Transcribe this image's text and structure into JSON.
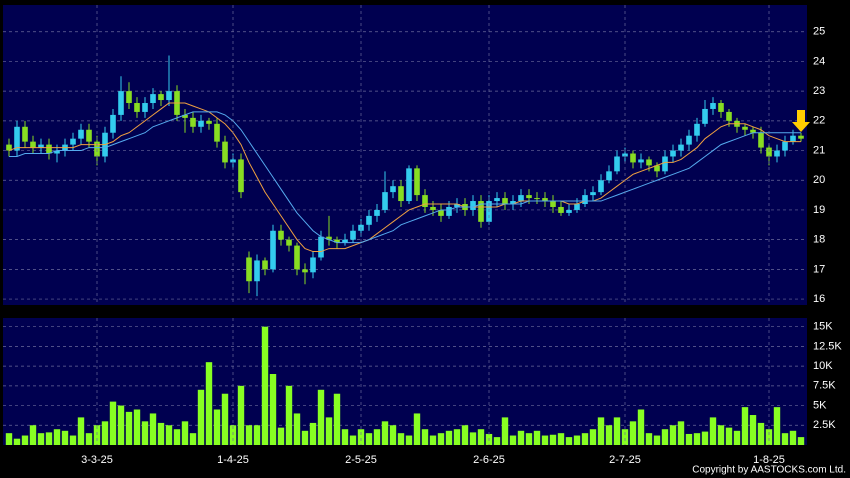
{
  "chart_data": [
    {
      "type": "candlestick",
      "up_color": "#33ccee",
      "down_color": "#88dd22",
      "ylim": [
        15.8,
        25.9
      ],
      "yticks": [
        16,
        17,
        18,
        19,
        20,
        21,
        22,
        23,
        24,
        25
      ],
      "grid": true,
      "open": [
        21.2,
        21.0,
        21.8,
        21.3,
        21.1,
        21.2,
        20.9,
        21.0,
        21.2,
        21.4,
        21.7,
        21.3,
        20.8,
        21.6,
        22.2,
        23.0,
        22.6,
        22.3,
        22.6,
        22.9,
        22.7,
        23.0,
        22.2,
        22.1,
        21.8,
        22.0,
        21.9,
        21.3,
        20.6,
        20.7,
        17.4,
        16.6,
        17.3,
        17.0,
        18.3,
        18.0,
        17.8,
        17.0,
        16.9,
        17.4,
        18.1,
        18.0,
        17.9,
        18.0,
        18.3,
        18.5,
        18.8,
        19.0,
        19.6,
        19.8,
        19.3,
        20.4,
        19.5,
        19.1,
        19.0,
        18.8,
        19.1,
        19.2,
        19.0,
        19.3,
        18.6,
        19.3,
        19.4,
        19.2,
        19.3,
        19.5,
        19.4,
        19.4,
        19.3,
        19.1,
        18.9,
        19.0,
        19.2,
        19.5,
        19.6,
        20.0,
        20.3,
        20.8,
        20.9,
        20.6,
        20.7,
        20.5,
        20.3,
        20.8,
        21.0,
        21.2,
        21.5,
        21.9,
        22.4,
        22.6,
        22.3,
        22.0,
        21.8,
        21.7,
        21.6,
        21.1,
        20.8,
        21.0,
        21.3,
        21.5
      ],
      "high": [
        21.4,
        22.0,
        22.0,
        21.5,
        21.4,
        21.4,
        21.2,
        21.4,
        21.6,
        21.9,
        21.9,
        21.5,
        21.8,
        22.4,
        23.5,
        23.3,
        22.8,
        22.8,
        23.1,
        23.0,
        24.2,
        23.2,
        22.4,
        22.3,
        22.2,
        22.1,
        22.1,
        21.5,
        20.9,
        20.9,
        17.6,
        17.5,
        17.4,
        18.5,
        18.5,
        18.1,
        17.9,
        17.2,
        17.6,
        18.3,
        18.8,
        18.1,
        18.2,
        18.5,
        18.7,
        19.0,
        19.2,
        20.3,
        20.0,
        20.0,
        20.5,
        20.5,
        19.7,
        19.3,
        19.2,
        19.3,
        19.4,
        19.4,
        19.5,
        19.5,
        19.5,
        19.6,
        19.6,
        19.5,
        19.7,
        19.7,
        19.6,
        19.6,
        19.5,
        19.3,
        19.2,
        19.4,
        19.7,
        19.8,
        20.2,
        20.5,
        21.0,
        21.1,
        21.0,
        20.9,
        20.8,
        20.6,
        21.0,
        21.2,
        21.4,
        21.7,
        22.1,
        22.7,
        22.8,
        22.7,
        22.4,
        22.1,
        21.9,
        21.8,
        21.8,
        21.2,
        21.2,
        21.5,
        21.7,
        21.6
      ],
      "low": [
        20.8,
        20.8,
        21.1,
        20.9,
        20.9,
        20.7,
        20.6,
        20.8,
        21.0,
        21.2,
        21.1,
        20.5,
        20.6,
        21.4,
        22.0,
        22.4,
        22.1,
        22.1,
        22.4,
        22.5,
        22.5,
        22.0,
        21.6,
        21.6,
        21.6,
        21.7,
        21.1,
        20.4,
        20.4,
        19.4,
        16.2,
        16.1,
        16.8,
        16.9,
        17.8,
        17.6,
        16.8,
        16.5,
        16.7,
        17.3,
        17.8,
        17.7,
        17.8,
        17.9,
        18.1,
        18.3,
        18.6,
        18.9,
        19.4,
        19.1,
        19.2,
        19.3,
        18.9,
        18.8,
        18.6,
        18.7,
        18.9,
        18.8,
        18.8,
        18.4,
        18.5,
        19.1,
        19.0,
        19.0,
        19.1,
        19.2,
        19.2,
        19.1,
        18.9,
        18.8,
        18.8,
        18.9,
        19.1,
        19.3,
        19.5,
        19.9,
        20.2,
        20.6,
        20.4,
        20.4,
        20.3,
        20.1,
        20.2,
        20.6,
        20.8,
        21.0,
        21.3,
        21.8,
        22.2,
        22.1,
        21.8,
        21.6,
        21.5,
        21.4,
        20.9,
        20.5,
        20.6,
        20.8,
        21.2,
        21.3
      ],
      "close": [
        21.0,
        21.8,
        21.3,
        21.1,
        21.2,
        20.9,
        21.0,
        21.2,
        21.4,
        21.7,
        21.3,
        20.8,
        21.6,
        22.2,
        23.0,
        22.6,
        22.3,
        22.6,
        22.9,
        22.7,
        23.0,
        22.2,
        22.1,
        21.8,
        22.0,
        21.9,
        21.3,
        20.6,
        20.7,
        19.6,
        16.6,
        17.3,
        17.0,
        18.3,
        18.0,
        17.8,
        17.0,
        16.9,
        17.4,
        18.1,
        18.0,
        17.9,
        18.0,
        18.3,
        18.5,
        18.8,
        19.0,
        19.6,
        19.8,
        19.3,
        20.4,
        19.5,
        19.1,
        19.0,
        18.8,
        19.1,
        19.2,
        19.0,
        19.3,
        18.6,
        19.3,
        19.4,
        19.2,
        19.3,
        19.5,
        19.4,
        19.4,
        19.3,
        19.1,
        18.9,
        19.0,
        19.2,
        19.5,
        19.6,
        20.0,
        20.3,
        20.8,
        20.9,
        20.6,
        20.7,
        20.5,
        20.3,
        20.8,
        21.0,
        21.2,
        21.5,
        21.9,
        22.4,
        22.6,
        22.3,
        22.0,
        21.8,
        21.7,
        21.6,
        21.1,
        20.8,
        21.0,
        21.3,
        21.5,
        21.4
      ],
      "lines": [
        {
          "color": "#f0a040",
          "values": [
            21.0,
            21.1,
            21.1,
            21.1,
            21.1,
            21.1,
            21.1,
            21.1,
            21.1,
            21.2,
            21.2,
            21.2,
            21.2,
            21.3,
            21.5,
            21.6,
            21.8,
            22.0,
            22.2,
            22.4,
            22.6,
            22.6,
            22.6,
            22.5,
            22.4,
            22.3,
            22.1,
            21.9,
            21.6,
            21.2,
            20.6,
            20.1,
            19.6,
            19.2,
            18.8,
            18.4,
            18.0,
            17.7,
            17.6,
            17.6,
            17.7,
            17.7,
            17.7,
            17.8,
            17.9,
            18.0,
            18.2,
            18.4,
            18.6,
            18.8,
            19.0,
            19.1,
            19.2,
            19.2,
            19.2,
            19.2,
            19.2,
            19.1,
            19.1,
            19.1,
            19.1,
            19.1,
            19.2,
            19.2,
            19.3,
            19.3,
            19.3,
            19.3,
            19.3,
            19.3,
            19.2,
            19.2,
            19.3,
            19.3,
            19.4,
            19.6,
            19.8,
            20.0,
            20.2,
            20.3,
            20.4,
            20.5,
            20.6,
            20.6,
            20.7,
            20.9,
            21.1,
            21.4,
            21.6,
            21.8,
            21.9,
            21.9,
            21.9,
            21.8,
            21.7,
            21.5,
            21.4,
            21.3,
            21.3,
            21.3
          ]
        },
        {
          "color": "#55aaee",
          "values": [
            20.8,
            20.8,
            20.9,
            20.9,
            20.9,
            20.9,
            21.0,
            21.0,
            21.0,
            21.0,
            21.1,
            21.1,
            21.1,
            21.2,
            21.3,
            21.4,
            21.5,
            21.6,
            21.8,
            21.9,
            22.0,
            22.1,
            22.2,
            22.3,
            22.3,
            22.3,
            22.3,
            22.2,
            22.0,
            21.7,
            21.3,
            20.9,
            20.5,
            20.1,
            19.7,
            19.3,
            18.9,
            18.6,
            18.3,
            18.1,
            18.0,
            17.9,
            17.9,
            17.9,
            17.9,
            18.0,
            18.1,
            18.2,
            18.3,
            18.5,
            18.6,
            18.7,
            18.8,
            18.9,
            19.0,
            19.0,
            19.1,
            19.1,
            19.1,
            19.2,
            19.2,
            19.2,
            19.2,
            19.2,
            19.2,
            19.3,
            19.3,
            19.3,
            19.3,
            19.3,
            19.3,
            19.3,
            19.3,
            19.3,
            19.3,
            19.4,
            19.5,
            19.6,
            19.7,
            19.8,
            19.9,
            20.0,
            20.1,
            20.2,
            20.3,
            20.4,
            20.6,
            20.8,
            21.0,
            21.2,
            21.3,
            21.4,
            21.5,
            21.6,
            21.6,
            21.6,
            21.6,
            21.6,
            21.6,
            21.6
          ]
        }
      ]
    },
    {
      "type": "bar",
      "color": "#88ff22",
      "ylim": [
        0,
        16100
      ],
      "grid": true,
      "yticks": [
        {
          "value": 2500,
          "label": "2.5K"
        },
        {
          "value": 5000,
          "label": "5K"
        },
        {
          "value": 7500,
          "label": "7.5K"
        },
        {
          "value": 10000,
          "label": "10K"
        },
        {
          "value": 12500,
          "label": "12.5K"
        },
        {
          "value": 15000,
          "label": "15K"
        }
      ],
      "categories": [
        null,
        null,
        null,
        null,
        null,
        null,
        null,
        null,
        null,
        null,
        null,
        "3-3-25",
        null,
        null,
        null,
        null,
        null,
        null,
        null,
        null,
        null,
        null,
        null,
        null,
        null,
        null,
        null,
        null,
        "1-4-25",
        null,
        null,
        null,
        null,
        null,
        null,
        null,
        null,
        null,
        null,
        null,
        null,
        null,
        null,
        null,
        "2-5-25",
        null,
        null,
        null,
        null,
        null,
        null,
        null,
        null,
        null,
        null,
        null,
        null,
        null,
        null,
        null,
        "2-6-25",
        null,
        null,
        null,
        null,
        null,
        null,
        null,
        null,
        null,
        null,
        null,
        null,
        null,
        null,
        null,
        null,
        "2-7-25",
        null,
        null,
        null,
        null,
        null,
        null,
        null,
        null,
        null,
        null,
        null,
        null,
        null,
        null,
        null,
        null,
        null,
        "1-8-25",
        null,
        null,
        null,
        null
      ],
      "values": [
        1500,
        800,
        1200,
        2500,
        1500,
        1600,
        2000,
        1800,
        1200,
        3500,
        1500,
        2500,
        3000,
        5500,
        5000,
        4200,
        4500,
        3000,
        4000,
        2800,
        2500,
        2000,
        3000,
        1500,
        7000,
        10500,
        4500,
        6500,
        2500,
        7500,
        2500,
        2500,
        15000,
        9000,
        2200,
        7500,
        4000,
        1800,
        2800,
        7000,
        3500,
        6500,
        2000,
        1200,
        2000,
        1500,
        2000,
        3000,
        2500,
        1500,
        1200,
        4000,
        2000,
        1200,
        1500,
        1800,
        2000,
        2500,
        1600,
        2000,
        1400,
        1000,
        3500,
        1200,
        1800,
        1500,
        1800,
        1200,
        1300,
        1500,
        1000,
        1200,
        1500,
        2000,
        3500,
        2500,
        3500,
        2000,
        3000,
        4500,
        1500,
        1200,
        2000,
        2500,
        3000,
        1400,
        1500,
        1700,
        3500,
        2500,
        2200,
        1800,
        4800,
        3800,
        2800,
        2000,
        4800,
        1500,
        1800,
        1000
      ],
      "footnote": "Copyright by AASTOCKS.com Ltd."
    }
  ]
}
